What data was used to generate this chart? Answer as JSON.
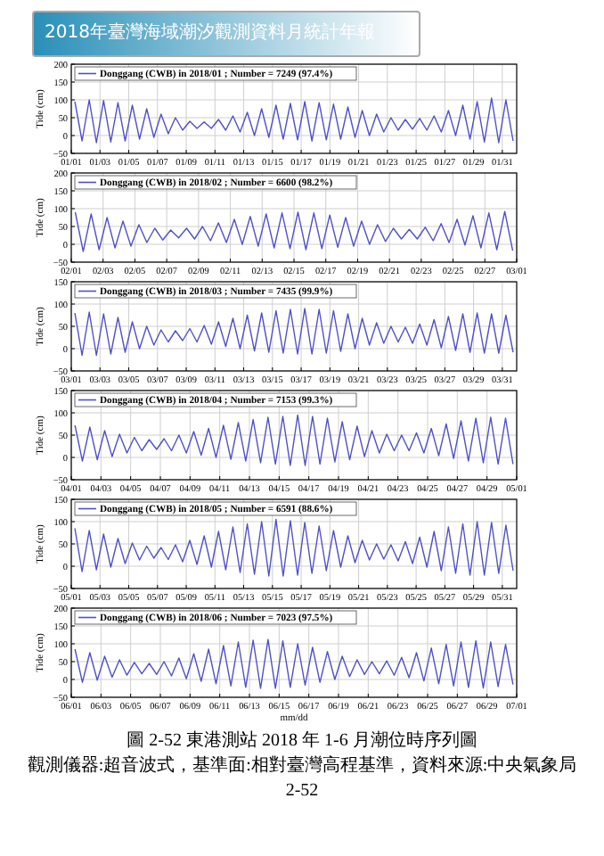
{
  "chart_data": [
    {
      "type": "line",
      "ylabel": "Tide (cm)",
      "legend": "top left",
      "grid": true,
      "annotations": [
        "2018年臺灣海域潮汐觀測資料月統計年報"
      ],
      "ylim": [
        -50,
        200
      ],
      "yticks": [
        -50,
        0,
        50,
        100,
        150,
        200
      ],
      "xlim": [
        "2018-01-01",
        "2018-02-01"
      ],
      "xticks": [
        {
          "value": "2018-01-01",
          "label": "01/01"
        },
        {
          "value": "2018-01-03",
          "label": "01/03"
        },
        {
          "value": "2018-01-05",
          "label": "01/05"
        },
        {
          "value": "2018-01-07",
          "label": "01/07"
        },
        {
          "value": "2018-01-09",
          "label": "01/09"
        },
        {
          "value": "2018-01-11",
          "label": "01/11"
        },
        {
          "value": "2018-01-13",
          "label": "01/13"
        },
        {
          "value": "2018-01-15",
          "label": "01/15"
        },
        {
          "value": "2018-01-17",
          "label": "01/17"
        },
        {
          "value": "2018-01-19",
          "label": "01/19"
        },
        {
          "value": "2018-01-21",
          "label": "01/21"
        },
        {
          "value": "2018-01-23",
          "label": "01/23"
        },
        {
          "value": "2018-01-25",
          "label": "01/25"
        },
        {
          "value": "2018-01-27",
          "label": "01/27"
        },
        {
          "value": "2018-01-29",
          "label": "01/29"
        },
        {
          "value": "2018-01-31",
          "label": "01/31"
        }
      ],
      "x": [
        "2018-01-01T06:00",
        "2018-01-01T18:00",
        "2018-01-02T06:00",
        "2018-01-02T18:00",
        "2018-01-03T06:00",
        "2018-01-03T18:00",
        "2018-01-04T06:00",
        "2018-01-04T18:00",
        "2018-01-05T06:00",
        "2018-01-05T18:00",
        "2018-01-06T06:00",
        "2018-01-06T18:00",
        "2018-01-07T06:00",
        "2018-01-07T18:00",
        "2018-01-08T06:00",
        "2018-01-08T18:00",
        "2018-01-09T06:00",
        "2018-01-09T18:00",
        "2018-01-10T06:00",
        "2018-01-10T18:00",
        "2018-01-11T06:00",
        "2018-01-11T18:00",
        "2018-01-12T06:00",
        "2018-01-12T18:00",
        "2018-01-13T06:00",
        "2018-01-13T18:00",
        "2018-01-14T06:00",
        "2018-01-14T18:00",
        "2018-01-15T06:00",
        "2018-01-15T18:00",
        "2018-01-16T06:00",
        "2018-01-16T18:00",
        "2018-01-17T06:00",
        "2018-01-17T18:00",
        "2018-01-18T06:00",
        "2018-01-18T18:00",
        "2018-01-19T06:00",
        "2018-01-19T18:00",
        "2018-01-20T06:00",
        "2018-01-20T18:00",
        "2018-01-21T06:00",
        "2018-01-21T18:00",
        "2018-01-22T06:00",
        "2018-01-22T18:00",
        "2018-01-23T06:00",
        "2018-01-23T18:00",
        "2018-01-24T06:00",
        "2018-01-24T18:00",
        "2018-01-25T06:00",
        "2018-01-25T18:00",
        "2018-01-26T06:00",
        "2018-01-26T18:00",
        "2018-01-27T06:00",
        "2018-01-27T18:00",
        "2018-01-28T06:00",
        "2018-01-28T18:00",
        "2018-01-29T06:00",
        "2018-01-29T18:00",
        "2018-01-30T06:00",
        "2018-01-30T18:00",
        "2018-01-31T06:00",
        "2018-01-31T18:00"
      ],
      "series": [
        {
          "name": "Donggang (CWB) in 2018/01 ; Number = 7249 (97.4%)",
          "color": "#5050c8",
          "values": [
            95,
            -15,
            100,
            -20,
            98,
            -18,
            92,
            -15,
            85,
            -10,
            75,
            -5,
            60,
            5,
            50,
            15,
            40,
            20,
            38,
            20,
            45,
            15,
            55,
            10,
            65,
            0,
            75,
            -5,
            85,
            -10,
            90,
            -12,
            95,
            -15,
            92,
            -12,
            88,
            -10,
            80,
            -5,
            70,
            0,
            60,
            10,
            50,
            15,
            45,
            18,
            48,
            15,
            55,
            10,
            70,
            0,
            85,
            -10,
            95,
            -18,
            105,
            -20,
            100,
            -15
          ]
        }
      ]
    },
    {
      "type": "line",
      "ylabel": "Tide (cm)",
      "legend": "top left",
      "grid": true,
      "ylim": [
        -50,
        200
      ],
      "yticks": [
        -50,
        0,
        50,
        100,
        150,
        200
      ],
      "xlim": [
        "2018-02-01",
        "2018-03-01"
      ],
      "xticks": [
        {
          "value": "2018-02-01",
          "label": "02/01"
        },
        {
          "value": "2018-02-03",
          "label": "02/03"
        },
        {
          "value": "2018-02-05",
          "label": "02/05"
        },
        {
          "value": "2018-02-07",
          "label": "02/07"
        },
        {
          "value": "2018-02-09",
          "label": "02/09"
        },
        {
          "value": "2018-02-11",
          "label": "02/11"
        },
        {
          "value": "2018-02-13",
          "label": "02/13"
        },
        {
          "value": "2018-02-15",
          "label": "02/15"
        },
        {
          "value": "2018-02-17",
          "label": "02/17"
        },
        {
          "value": "2018-02-19",
          "label": "02/19"
        },
        {
          "value": "2018-02-21",
          "label": "02/21"
        },
        {
          "value": "2018-02-23",
          "label": "02/23"
        },
        {
          "value": "2018-02-25",
          "label": "02/25"
        },
        {
          "value": "2018-02-27",
          "label": "02/27"
        },
        {
          "value": "2018-03-01",
          "label": "03/01"
        }
      ],
      "x": [
        "2018-02-01T06:00",
        "2018-02-01T18:00",
        "2018-02-02T06:00",
        "2018-02-02T18:00",
        "2018-02-03T06:00",
        "2018-02-03T18:00",
        "2018-02-04T06:00",
        "2018-02-04T18:00",
        "2018-02-05T06:00",
        "2018-02-05T18:00",
        "2018-02-06T06:00",
        "2018-02-06T18:00",
        "2018-02-07T06:00",
        "2018-02-07T18:00",
        "2018-02-08T06:00",
        "2018-02-08T18:00",
        "2018-02-09T06:00",
        "2018-02-09T18:00",
        "2018-02-10T06:00",
        "2018-02-10T18:00",
        "2018-02-11T06:00",
        "2018-02-11T18:00",
        "2018-02-12T06:00",
        "2018-02-12T18:00",
        "2018-02-13T06:00",
        "2018-02-13T18:00",
        "2018-02-14T06:00",
        "2018-02-14T18:00",
        "2018-02-15T06:00",
        "2018-02-15T18:00",
        "2018-02-16T06:00",
        "2018-02-16T18:00",
        "2018-02-17T06:00",
        "2018-02-17T18:00",
        "2018-02-18T06:00",
        "2018-02-18T18:00",
        "2018-02-19T06:00",
        "2018-02-19T18:00",
        "2018-02-20T06:00",
        "2018-02-20T18:00",
        "2018-02-21T06:00",
        "2018-02-21T18:00",
        "2018-02-22T06:00",
        "2018-02-22T18:00",
        "2018-02-23T06:00",
        "2018-02-23T18:00",
        "2018-02-24T06:00",
        "2018-02-24T18:00",
        "2018-02-25T06:00",
        "2018-02-25T18:00",
        "2018-02-26T06:00",
        "2018-02-26T18:00",
        "2018-02-27T06:00",
        "2018-02-27T18:00",
        "2018-02-28T06:00",
        "2018-02-28T18:00"
      ],
      "series": [
        {
          "name": "Donggang (CWB) in 2018/02 ; Number = 6600 (98.2%)",
          "color": "#5050c8",
          "values": [
            90,
            -20,
            85,
            -15,
            75,
            -10,
            65,
            -5,
            55,
            5,
            45,
            12,
            40,
            18,
            45,
            15,
            50,
            10,
            60,
            5,
            70,
            0,
            78,
            -5,
            85,
            -10,
            88,
            -12,
            90,
            -15,
            88,
            -12,
            82,
            -8,
            75,
            -5,
            65,
            0,
            55,
            8,
            45,
            15,
            42,
            15,
            48,
            10,
            58,
            5,
            70,
            -2,
            80,
            -10,
            88,
            -15,
            92,
            -18
          ]
        }
      ]
    },
    {
      "type": "line",
      "ylabel": "Tide (cm)",
      "legend": "top left",
      "grid": true,
      "ylim": [
        -50,
        150
      ],
      "yticks": [
        -50,
        0,
        50,
        100,
        150
      ],
      "xlim": [
        "2018-03-01",
        "2018-04-01"
      ],
      "xticks": [
        {
          "value": "2018-03-01",
          "label": "03/01"
        },
        {
          "value": "2018-03-03",
          "label": "03/03"
        },
        {
          "value": "2018-03-05",
          "label": "03/05"
        },
        {
          "value": "2018-03-07",
          "label": "03/07"
        },
        {
          "value": "2018-03-09",
          "label": "03/09"
        },
        {
          "value": "2018-03-11",
          "label": "03/11"
        },
        {
          "value": "2018-03-13",
          "label": "03/13"
        },
        {
          "value": "2018-03-15",
          "label": "03/15"
        },
        {
          "value": "2018-03-17",
          "label": "03/17"
        },
        {
          "value": "2018-03-19",
          "label": "03/19"
        },
        {
          "value": "2018-03-21",
          "label": "03/21"
        },
        {
          "value": "2018-03-23",
          "label": "03/23"
        },
        {
          "value": "2018-03-25",
          "label": "03/25"
        },
        {
          "value": "2018-03-27",
          "label": "03/27"
        },
        {
          "value": "2018-03-29",
          "label": "03/29"
        },
        {
          "value": "2018-03-31",
          "label": "03/31"
        }
      ],
      "x": [
        "2018-03-01T06:00",
        "2018-03-01T18:00",
        "2018-03-02T06:00",
        "2018-03-02T18:00",
        "2018-03-03T06:00",
        "2018-03-03T18:00",
        "2018-03-04T06:00",
        "2018-03-04T18:00",
        "2018-03-05T06:00",
        "2018-03-05T18:00",
        "2018-03-06T06:00",
        "2018-03-06T18:00",
        "2018-03-07T06:00",
        "2018-03-07T18:00",
        "2018-03-08T06:00",
        "2018-03-08T18:00",
        "2018-03-09T06:00",
        "2018-03-09T18:00",
        "2018-03-10T06:00",
        "2018-03-10T18:00",
        "2018-03-11T06:00",
        "2018-03-11T18:00",
        "2018-03-12T06:00",
        "2018-03-12T18:00",
        "2018-03-13T06:00",
        "2018-03-13T18:00",
        "2018-03-14T06:00",
        "2018-03-14T18:00",
        "2018-03-15T06:00",
        "2018-03-15T18:00",
        "2018-03-16T06:00",
        "2018-03-16T18:00",
        "2018-03-17T06:00",
        "2018-03-17T18:00",
        "2018-03-18T06:00",
        "2018-03-18T18:00",
        "2018-03-19T06:00",
        "2018-03-19T18:00",
        "2018-03-20T06:00",
        "2018-03-20T18:00",
        "2018-03-21T06:00",
        "2018-03-21T18:00",
        "2018-03-22T06:00",
        "2018-03-22T18:00",
        "2018-03-23T06:00",
        "2018-03-23T18:00",
        "2018-03-24T06:00",
        "2018-03-24T18:00",
        "2018-03-25T06:00",
        "2018-03-25T18:00",
        "2018-03-26T06:00",
        "2018-03-26T18:00",
        "2018-03-27T06:00",
        "2018-03-27T18:00",
        "2018-03-28T06:00",
        "2018-03-28T18:00",
        "2018-03-29T06:00",
        "2018-03-29T18:00",
        "2018-03-30T06:00",
        "2018-03-30T18:00",
        "2018-03-31T06:00",
        "2018-03-31T18:00"
      ],
      "series": [
        {
          "name": "Donggang (CWB) in 2018/03 ; Number = 7435 (99.9%)",
          "color": "#5050c8",
          "values": [
            80,
            -15,
            82,
            -15,
            78,
            -12,
            70,
            -8,
            60,
            0,
            50,
            8,
            42,
            15,
            40,
            18,
            45,
            15,
            52,
            10,
            60,
            5,
            68,
            0,
            75,
            -5,
            80,
            -8,
            85,
            -10,
            88,
            -12,
            90,
            -12,
            88,
            -10,
            85,
            -6,
            78,
            0,
            68,
            8,
            58,
            12,
            50,
            15,
            48,
            12,
            55,
            8,
            65,
            2,
            72,
            -4,
            78,
            -8,
            80,
            -10,
            78,
            -10,
            75,
            -8
          ]
        }
      ]
    },
    {
      "type": "line",
      "ylabel": "Tide (cm)",
      "legend": "top left",
      "grid": true,
      "ylim": [
        -50,
        150
      ],
      "yticks": [
        -50,
        0,
        50,
        100,
        150
      ],
      "xlim": [
        "2018-04-01",
        "2018-05-01"
      ],
      "xticks": [
        {
          "value": "2018-04-01",
          "label": "04/01"
        },
        {
          "value": "2018-04-03",
          "label": "04/03"
        },
        {
          "value": "2018-04-05",
          "label": "04/05"
        },
        {
          "value": "2018-04-07",
          "label": "04/07"
        },
        {
          "value": "2018-04-09",
          "label": "04/09"
        },
        {
          "value": "2018-04-11",
          "label": "04/11"
        },
        {
          "value": "2018-04-13",
          "label": "04/13"
        },
        {
          "value": "2018-04-15",
          "label": "04/15"
        },
        {
          "value": "2018-04-17",
          "label": "04/17"
        },
        {
          "value": "2018-04-19",
          "label": "04/19"
        },
        {
          "value": "2018-04-21",
          "label": "04/21"
        },
        {
          "value": "2018-04-23",
          "label": "04/23"
        },
        {
          "value": "2018-04-25",
          "label": "04/25"
        },
        {
          "value": "2018-04-27",
          "label": "04/27"
        },
        {
          "value": "2018-04-29",
          "label": "04/29"
        },
        {
          "value": "2018-05-01",
          "label": "05/01"
        }
      ],
      "x": [
        "2018-04-01T06:00",
        "2018-04-01T18:00",
        "2018-04-02T06:00",
        "2018-04-02T18:00",
        "2018-04-03T06:00",
        "2018-04-03T18:00",
        "2018-04-04T06:00",
        "2018-04-04T18:00",
        "2018-04-05T06:00",
        "2018-04-05T18:00",
        "2018-04-06T06:00",
        "2018-04-06T18:00",
        "2018-04-07T06:00",
        "2018-04-07T18:00",
        "2018-04-08T06:00",
        "2018-04-08T18:00",
        "2018-04-09T06:00",
        "2018-04-09T18:00",
        "2018-04-10T06:00",
        "2018-04-10T18:00",
        "2018-04-11T06:00",
        "2018-04-11T18:00",
        "2018-04-12T06:00",
        "2018-04-12T18:00",
        "2018-04-13T06:00",
        "2018-04-13T18:00",
        "2018-04-14T06:00",
        "2018-04-14T18:00",
        "2018-04-15T06:00",
        "2018-04-15T18:00",
        "2018-04-16T06:00",
        "2018-04-16T18:00",
        "2018-04-17T06:00",
        "2018-04-17T18:00",
        "2018-04-18T06:00",
        "2018-04-18T18:00",
        "2018-04-19T06:00",
        "2018-04-19T18:00",
        "2018-04-20T06:00",
        "2018-04-20T18:00",
        "2018-04-21T06:00",
        "2018-04-21T18:00",
        "2018-04-22T06:00",
        "2018-04-22T18:00",
        "2018-04-23T06:00",
        "2018-04-23T18:00",
        "2018-04-24T06:00",
        "2018-04-24T18:00",
        "2018-04-25T06:00",
        "2018-04-25T18:00",
        "2018-04-26T06:00",
        "2018-04-26T18:00",
        "2018-04-27T06:00",
        "2018-04-27T18:00",
        "2018-04-28T06:00",
        "2018-04-28T18:00",
        "2018-04-29T06:00",
        "2018-04-29T18:00",
        "2018-04-30T06:00",
        "2018-04-30T18:00"
      ],
      "series": [
        {
          "name": "Donggang (CWB) in 2018/04 ; Number = 7153 (99.3%)",
          "color": "#5050c8",
          "values": [
            72,
            -8,
            68,
            -5,
            60,
            2,
            52,
            10,
            45,
            15,
            40,
            18,
            42,
            15,
            50,
            10,
            58,
            5,
            65,
            0,
            72,
            -4,
            78,
            -8,
            85,
            -12,
            90,
            -15,
            92,
            -18,
            95,
            -18,
            92,
            -15,
            88,
            -10,
            80,
            -5,
            70,
            2,
            60,
            10,
            52,
            15,
            50,
            15,
            55,
            10,
            65,
            4,
            75,
            -2,
            82,
            -8,
            88,
            -12,
            90,
            -15,
            88,
            -15
          ]
        }
      ]
    },
    {
      "type": "line",
      "ylabel": "Tide (cm)",
      "legend": "top left",
      "grid": true,
      "ylim": [
        -50,
        150
      ],
      "yticks": [
        -50,
        0,
        50,
        100,
        150
      ],
      "xlim": [
        "2018-05-01",
        "2018-06-01"
      ],
      "xticks": [
        {
          "value": "2018-05-01",
          "label": "05/01"
        },
        {
          "value": "2018-05-03",
          "label": "05/03"
        },
        {
          "value": "2018-05-05",
          "label": "05/05"
        },
        {
          "value": "2018-05-07",
          "label": "05/07"
        },
        {
          "value": "2018-05-09",
          "label": "05/09"
        },
        {
          "value": "2018-05-11",
          "label": "05/11"
        },
        {
          "value": "2018-05-13",
          "label": "05/13"
        },
        {
          "value": "2018-05-15",
          "label": "05/15"
        },
        {
          "value": "2018-05-17",
          "label": "05/17"
        },
        {
          "value": "2018-05-19",
          "label": "05/19"
        },
        {
          "value": "2018-05-21",
          "label": "05/21"
        },
        {
          "value": "2018-05-23",
          "label": "05/23"
        },
        {
          "value": "2018-05-25",
          "label": "05/25"
        },
        {
          "value": "2018-05-27",
          "label": "05/27"
        },
        {
          "value": "2018-05-29",
          "label": "05/29"
        },
        {
          "value": "2018-05-31",
          "label": "05/31"
        }
      ],
      "x": [
        "2018-05-01T06:00",
        "2018-05-01T18:00",
        "2018-05-02T06:00",
        "2018-05-02T18:00",
        "2018-05-03T06:00",
        "2018-05-03T18:00",
        "2018-05-04T06:00",
        "2018-05-04T18:00",
        "2018-05-05T06:00",
        "2018-05-05T18:00",
        "2018-05-06T06:00",
        "2018-05-06T18:00",
        "2018-05-07T06:00",
        "2018-05-07T18:00",
        "2018-05-08T06:00",
        "2018-05-08T18:00",
        "2018-05-09T06:00",
        "2018-05-09T18:00",
        "2018-05-10T06:00",
        "2018-05-10T18:00",
        "2018-05-11T06:00",
        "2018-05-11T18:00",
        "2018-05-12T06:00",
        "2018-05-12T18:00",
        "2018-05-13T06:00",
        "2018-05-13T18:00",
        "2018-05-14T06:00",
        "2018-05-14T18:00",
        "2018-05-15T06:00",
        "2018-05-15T18:00",
        "2018-05-16T06:00",
        "2018-05-16T18:00",
        "2018-05-17T06:00",
        "2018-05-17T18:00",
        "2018-05-18T06:00",
        "2018-05-18T18:00",
        "2018-05-19T06:00",
        "2018-05-19T18:00",
        "2018-05-20T06:00",
        "2018-05-20T18:00",
        "2018-05-21T06:00",
        "2018-05-21T18:00",
        "2018-05-22T06:00",
        "2018-05-22T18:00",
        "2018-05-23T06:00",
        "2018-05-23T18:00",
        "2018-05-24T06:00",
        "2018-05-24T18:00",
        "2018-05-25T06:00",
        "2018-05-25T18:00",
        "2018-05-26T06:00",
        "2018-05-26T18:00",
        "2018-05-27T06:00",
        "2018-05-27T18:00",
        "2018-05-28T06:00",
        "2018-05-28T18:00",
        "2018-05-29T06:00",
        "2018-05-29T18:00",
        "2018-05-30T06:00",
        "2018-05-30T18:00",
        "2018-05-31T06:00",
        "2018-05-31T18:00"
      ],
      "series": [
        {
          "name": "Donggang (CWB) in 2018/05 ; Number = 6591 (88.6%)",
          "color": "#5050c8",
          "values": [
            85,
            -12,
            80,
            -8,
            72,
            -2,
            62,
            6,
            52,
            14,
            45,
            18,
            42,
            15,
            48,
            10,
            58,
            4,
            68,
            -2,
            78,
            -8,
            88,
            -14,
            95,
            -18,
            100,
            -22,
            105,
            -22,
            102,
            -20,
            98,
            -16,
            90,
            -10,
            80,
            -2,
            68,
            8,
            58,
            14,
            50,
            16,
            48,
            12,
            55,
            6,
            65,
            -2,
            78,
            -10,
            88,
            -16,
            95,
            -20,
            100,
            -20,
            98,
            -16,
            92,
            -10
          ]
        }
      ]
    },
    {
      "type": "line",
      "ylabel": "Tide (cm)",
      "xlabel": "mm/dd",
      "legend": "top left",
      "grid": true,
      "annotations": [
        "圖 2-52 東港測站 2018 年 1-6 月潮位時序列圖",
        "觀測儀器:超音波式，基準面:相對臺灣高程基準，資料來源:中央氣象局",
        "2-52"
      ],
      "ylim": [
        -50,
        200
      ],
      "yticks": [
        -50,
        0,
        50,
        100,
        150,
        200
      ],
      "xlim": [
        "2018-06-01",
        "2018-07-01"
      ],
      "xticks": [
        {
          "value": "2018-06-01",
          "label": "06/01"
        },
        {
          "value": "2018-06-03",
          "label": "06/03"
        },
        {
          "value": "2018-06-05",
          "label": "06/05"
        },
        {
          "value": "2018-06-07",
          "label": "06/07"
        },
        {
          "value": "2018-06-09",
          "label": "06/09"
        },
        {
          "value": "2018-06-11",
          "label": "06/11"
        },
        {
          "value": "2018-06-13",
          "label": "06/13"
        },
        {
          "value": "2018-06-15",
          "label": "06/15"
        },
        {
          "value": "2018-06-17",
          "label": "06/17"
        },
        {
          "value": "2018-06-19",
          "label": "06/19"
        },
        {
          "value": "2018-06-21",
          "label": "06/21"
        },
        {
          "value": "2018-06-23",
          "label": "06/23"
        },
        {
          "value": "2018-06-25",
          "label": "06/25"
        },
        {
          "value": "2018-06-27",
          "label": "06/27"
        },
        {
          "value": "2018-06-29",
          "label": "06/29"
        },
        {
          "value": "2018-07-01",
          "label": "07/01"
        }
      ],
      "x": [
        "2018-06-01T06:00",
        "2018-06-01T18:00",
        "2018-06-02T06:00",
        "2018-06-02T18:00",
        "2018-06-03T06:00",
        "2018-06-03T18:00",
        "2018-06-04T06:00",
        "2018-06-04T18:00",
        "2018-06-05T06:00",
        "2018-06-05T18:00",
        "2018-06-06T06:00",
        "2018-06-06T18:00",
        "2018-06-07T06:00",
        "2018-06-07T18:00",
        "2018-06-08T06:00",
        "2018-06-08T18:00",
        "2018-06-09T06:00",
        "2018-06-09T18:00",
        "2018-06-10T06:00",
        "2018-06-10T18:00",
        "2018-06-11T06:00",
        "2018-06-11T18:00",
        "2018-06-12T06:00",
        "2018-06-12T18:00",
        "2018-06-13T06:00",
        "2018-06-13T18:00",
        "2018-06-14T06:00",
        "2018-06-14T18:00",
        "2018-06-15T06:00",
        "2018-06-15T18:00",
        "2018-06-16T06:00",
        "2018-06-16T18:00",
        "2018-06-17T06:00",
        "2018-06-17T18:00",
        "2018-06-18T06:00",
        "2018-06-18T18:00",
        "2018-06-19T06:00",
        "2018-06-19T18:00",
        "2018-06-20T06:00",
        "2018-06-20T18:00",
        "2018-06-21T06:00",
        "2018-06-21T18:00",
        "2018-06-22T06:00",
        "2018-06-22T18:00",
        "2018-06-23T06:00",
        "2018-06-23T18:00",
        "2018-06-24T06:00",
        "2018-06-24T18:00",
        "2018-06-25T06:00",
        "2018-06-25T18:00",
        "2018-06-26T06:00",
        "2018-06-26T18:00",
        "2018-06-27T06:00",
        "2018-06-27T18:00",
        "2018-06-28T06:00",
        "2018-06-28T18:00",
        "2018-06-29T06:00",
        "2018-06-29T18:00",
        "2018-06-30T06:00",
        "2018-06-30T18:00"
      ],
      "series": [
        {
          "name": "Donggang (CWB) in 2018/06 ; Number = 7023 (97.5%)",
          "color": "#5050c8",
          "values": [
            85,
            -8,
            75,
            -2,
            65,
            6,
            55,
            12,
            48,
            16,
            45,
            14,
            50,
            10,
            60,
            2,
            72,
            -5,
            85,
            -12,
            95,
            -18,
            105,
            -22,
            110,
            -25,
            112,
            -25,
            108,
            -22,
            100,
            -16,
            90,
            -8,
            78,
            0,
            65,
            8,
            55,
            14,
            50,
            16,
            52,
            12,
            62,
            5,
            75,
            -4,
            88,
            -12,
            98,
            -18,
            105,
            -22,
            108,
            -24,
            105,
            -20,
            98,
            -14
          ]
        }
      ]
    }
  ]
}
